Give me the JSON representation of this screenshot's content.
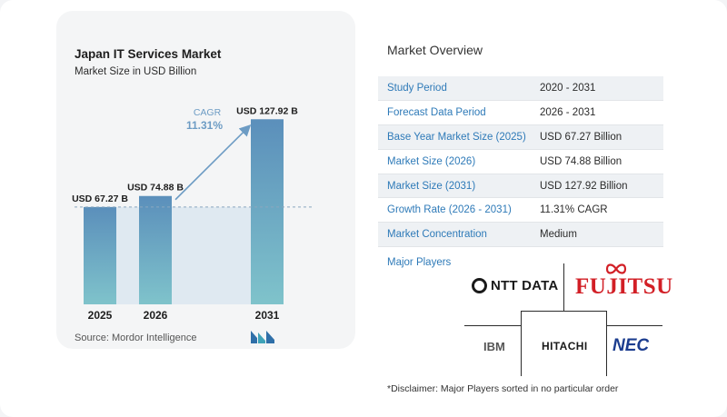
{
  "chart_data": {
    "type": "bar",
    "title": "Japan IT Services Market",
    "subtitle": "Market Size in USD Billion",
    "categories": [
      "2025",
      "2026",
      "2031"
    ],
    "values": [
      67.27,
      74.88,
      127.92
    ],
    "data_labels": [
      "USD 67.27 B",
      "USD 74.88 B",
      "USD 127.92 B"
    ],
    "cagr_label": "CAGR",
    "cagr_value": "11.31%",
    "ylim": [
      0,
      135
    ],
    "grid": false,
    "colors": {
      "bar_top": "#5b8fbb",
      "bar_bottom": "#7fc3cb",
      "arrow": "#6d9cc4",
      "cagr_text": "#6d9cc4",
      "shade": "#dfe9f1"
    }
  },
  "source": "Source:  Mordor Intelligence",
  "brand_logo": "mordor-intelligence-logo",
  "overview": {
    "title": "Market Overview",
    "rows": [
      {
        "label": "Study Period",
        "value": "2020 - 2031"
      },
      {
        "label": "Forecast Data Period",
        "value": "2026 - 2031"
      },
      {
        "label": "Base Year Market Size (2025)",
        "value": "USD 67.27 Billion"
      },
      {
        "label": "Market Size (2026)",
        "value": "USD 74.88 Billion"
      },
      {
        "label": "Market Size (2031)",
        "value": "USD 127.92 Billion"
      },
      {
        "label": "Growth Rate (2026 - 2031)",
        "value": "11.31% CAGR"
      },
      {
        "label": "Market Concentration",
        "value": "Medium"
      }
    ]
  },
  "players": {
    "title": "Major Players",
    "logos": {
      "ntt": "NTT DATA",
      "fujitsu": "FUJITSU",
      "ibm": "IBM",
      "hitachi": "HITACHI",
      "nec": "NEC"
    }
  },
  "disclaimer": "*Disclaimer: Major Players sorted in no particular order"
}
